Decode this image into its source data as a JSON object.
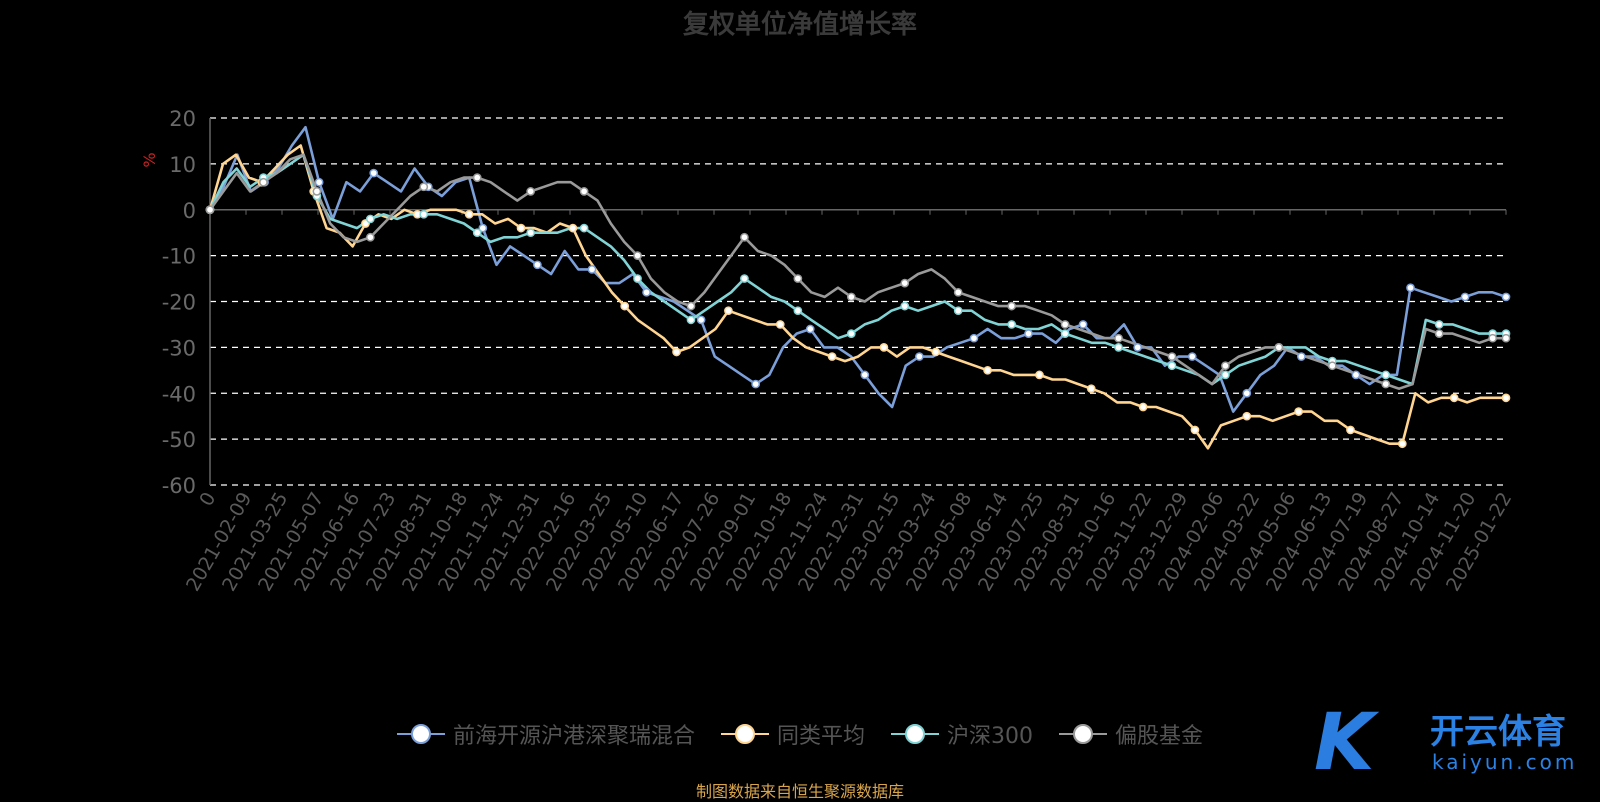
{
  "page": {
    "title": "复权单位净值增长率",
    "source": "制图数据来自恒生聚源数据库",
    "logo": {
      "mark": "K",
      "cn": "开云体育",
      "en": "kaiyun.com"
    }
  },
  "colors": {
    "fund": "#7b9fd8",
    "peer": "#ffd591",
    "hs300": "#80d4d6",
    "equity": "#9a9a9a",
    "axis": "#666666",
    "grid": "#ffffff",
    "ylabel": "#cc2222"
  },
  "chart_data": {
    "type": "line",
    "title": "复权单位净值增长率",
    "ylabel": "%",
    "ylim": [
      -60,
      20
    ],
    "yticks": [
      20,
      10,
      0,
      -10,
      -20,
      -30,
      -40,
      -50,
      -60
    ],
    "grid": true,
    "legend_position": "bottom",
    "x_tick_labels": [
      "0",
      "2021-02-09",
      "2021-03-25",
      "2021-05-07",
      "2021-06-16",
      "2021-07-23",
      "2021-08-31",
      "2021-10-18",
      "2021-11-24",
      "2021-12-31",
      "2022-02-16",
      "2022-03-25",
      "2022-05-10",
      "2022-06-17",
      "2022-07-26",
      "2022-09-01",
      "2022-10-18",
      "2022-11-24",
      "2022-12-31",
      "2023-02-15",
      "2023-03-24",
      "2023-05-08",
      "2023-06-14",
      "2023-07-25",
      "2023-08-31",
      "2023-10-16",
      "2023-11-22",
      "2023-12-29",
      "2024-02-06",
      "2024-03-22",
      "2024-05-06",
      "2024-06-13",
      "2024-07-19",
      "2024-08-27",
      "2024-10-14",
      "2024-11-20",
      "2025-01-22"
    ],
    "series": [
      {
        "name": "前海开源沪港深聚瑞混合",
        "color_key": "fund",
        "values": [
          0,
          5,
          12,
          4,
          6,
          9,
          14,
          18,
          6,
          -2,
          6,
          4,
          8,
          6,
          4,
          9,
          5,
          3,
          6,
          7,
          -4,
          -12,
          -8,
          -10,
          -12,
          -14,
          -9,
          -13,
          -13,
          -16,
          -16,
          -14,
          -18,
          -19,
          -20,
          -22,
          -24,
          -32,
          -34,
          -36,
          -38,
          -36,
          -30,
          -27,
          -26,
          -30,
          -30,
          -32,
          -36,
          -40,
          -43,
          -34,
          -32,
          -32,
          -30,
          -29,
          -28,
          -26,
          -28,
          -28,
          -27,
          -27,
          -29,
          -26,
          -25,
          -28,
          -28,
          -25,
          -30,
          -30,
          -34,
          -32,
          -32,
          -34,
          -36,
          -44,
          -40,
          -36,
          -34,
          -30,
          -32,
          -32,
          -34,
          -34,
          -36,
          -38,
          -36,
          -36,
          -17,
          -18,
          -19,
          -20,
          -19,
          -18,
          -18,
          -19
        ]
      },
      {
        "name": "同类平均",
        "color_key": "peer",
        "values": [
          0,
          10,
          12,
          7,
          6,
          9,
          12,
          14,
          4,
          -4,
          -5,
          -8,
          -3,
          -1,
          -2,
          0,
          -1,
          0,
          0,
          0,
          -1,
          -1,
          -3,
          -2,
          -4,
          -4,
          -5,
          -3,
          -4,
          -10,
          -14,
          -18,
          -21,
          -24,
          -26,
          -28,
          -31,
          -30,
          -28,
          -26,
          -22,
          -23,
          -24,
          -25,
          -25,
          -28,
          -30,
          -31,
          -32,
          -33,
          -32,
          -30,
          -30,
          -32,
          -30,
          -30,
          -31,
          -32,
          -33,
          -34,
          -35,
          -35,
          -36,
          -36,
          -36,
          -37,
          -37,
          -38,
          -39,
          -40,
          -42,
          -42,
          -43,
          -43,
          -44,
          -45,
          -48,
          -52,
          -47,
          -46,
          -45,
          -45,
          -46,
          -45,
          -44,
          -44,
          -46,
          -46,
          -48,
          -49,
          -50,
          -51,
          -51,
          -40,
          -42,
          -41,
          -41,
          -42,
          -41,
          -41,
          -41
        ]
      },
      {
        "name": "沪深300",
        "color_key": "hs300",
        "values": [
          0,
          6,
          9,
          5,
          7,
          8,
          10,
          12,
          3,
          -2,
          -3,
          -4,
          -2,
          -1,
          -2,
          -1,
          -1,
          -1,
          -2,
          -3,
          -5,
          -7,
          -6,
          -6,
          -5,
          -5,
          -5,
          -4,
          -4,
          -6,
          -8,
          -11,
          -15,
          -18,
          -20,
          -22,
          -24,
          -22,
          -20,
          -18,
          -15,
          -17,
          -19,
          -20,
          -22,
          -24,
          -26,
          -28,
          -27,
          -25,
          -24,
          -22,
          -21,
          -22,
          -21,
          -20,
          -22,
          -22,
          -24,
          -25,
          -25,
          -26,
          -26,
          -25,
          -27,
          -28,
          -29,
          -29,
          -30,
          -31,
          -32,
          -33,
          -34,
          -35,
          -36,
          -38,
          -36,
          -34,
          -33,
          -32,
          -30,
          -30,
          -30,
          -32,
          -33,
          -33,
          -34,
          -35,
          -36,
          -37,
          -38,
          -24,
          -25,
          -25,
          -26,
          -27,
          -27,
          -27
        ]
      },
      {
        "name": "偏股基金",
        "color_key": "equity",
        "values": [
          0,
          4,
          8,
          4,
          6,
          8,
          11,
          12,
          4,
          -3,
          -6,
          -7,
          -6,
          -3,
          0,
          3,
          5,
          4,
          6,
          7,
          7,
          6,
          4,
          2,
          4,
          5,
          6,
          6,
          4,
          2,
          -3,
          -7,
          -10,
          -15,
          -18,
          -20,
          -21,
          -18,
          -14,
          -10,
          -6,
          -9,
          -10,
          -12,
          -15,
          -18,
          -19,
          -17,
          -19,
          -20,
          -18,
          -17,
          -16,
          -14,
          -13,
          -15,
          -18,
          -19,
          -20,
          -21,
          -21,
          -21,
          -22,
          -23,
          -25,
          -26,
          -27,
          -28,
          -28,
          -29,
          -30,
          -31,
          -32,
          -34,
          -36,
          -38,
          -34,
          -32,
          -31,
          -30,
          -30,
          -31,
          -32,
          -33,
          -34,
          -35,
          -36,
          -37,
          -38,
          -39,
          -38,
          -26,
          -27,
          -27,
          -28,
          -29,
          -28,
          -28
        ]
      }
    ]
  }
}
